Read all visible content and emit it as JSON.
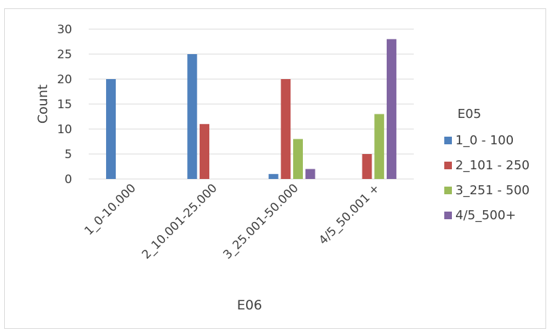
{
  "chart_data": {
    "type": "bar",
    "categories": [
      "1_0-10.000",
      "2_10.001-25.000",
      "3_25.001-50.000",
      "4/5_50.001 +"
    ],
    "series": [
      {
        "name": "1_0 - 100",
        "color": "#4F81BD",
        "values": [
          20,
          25,
          1,
          0
        ]
      },
      {
        "name": "2_101 - 250",
        "color": "#C0504D",
        "values": [
          0,
          11,
          20,
          5
        ]
      },
      {
        "name": "3_251 - 500",
        "color": "#9BBB59",
        "values": [
          0,
          0,
          8,
          13
        ]
      },
      {
        "name": "4/5_500+",
        "color": "#8064A2",
        "values": [
          0,
          0,
          2,
          28
        ]
      }
    ],
    "xlabel": "E06",
    "ylabel": "Count",
    "legend_title": "E05",
    "legend_position": "right",
    "ylim": [
      0,
      30
    ],
    "yticks": [
      0,
      5,
      10,
      15,
      20,
      25,
      30
    ],
    "grid": true
  }
}
